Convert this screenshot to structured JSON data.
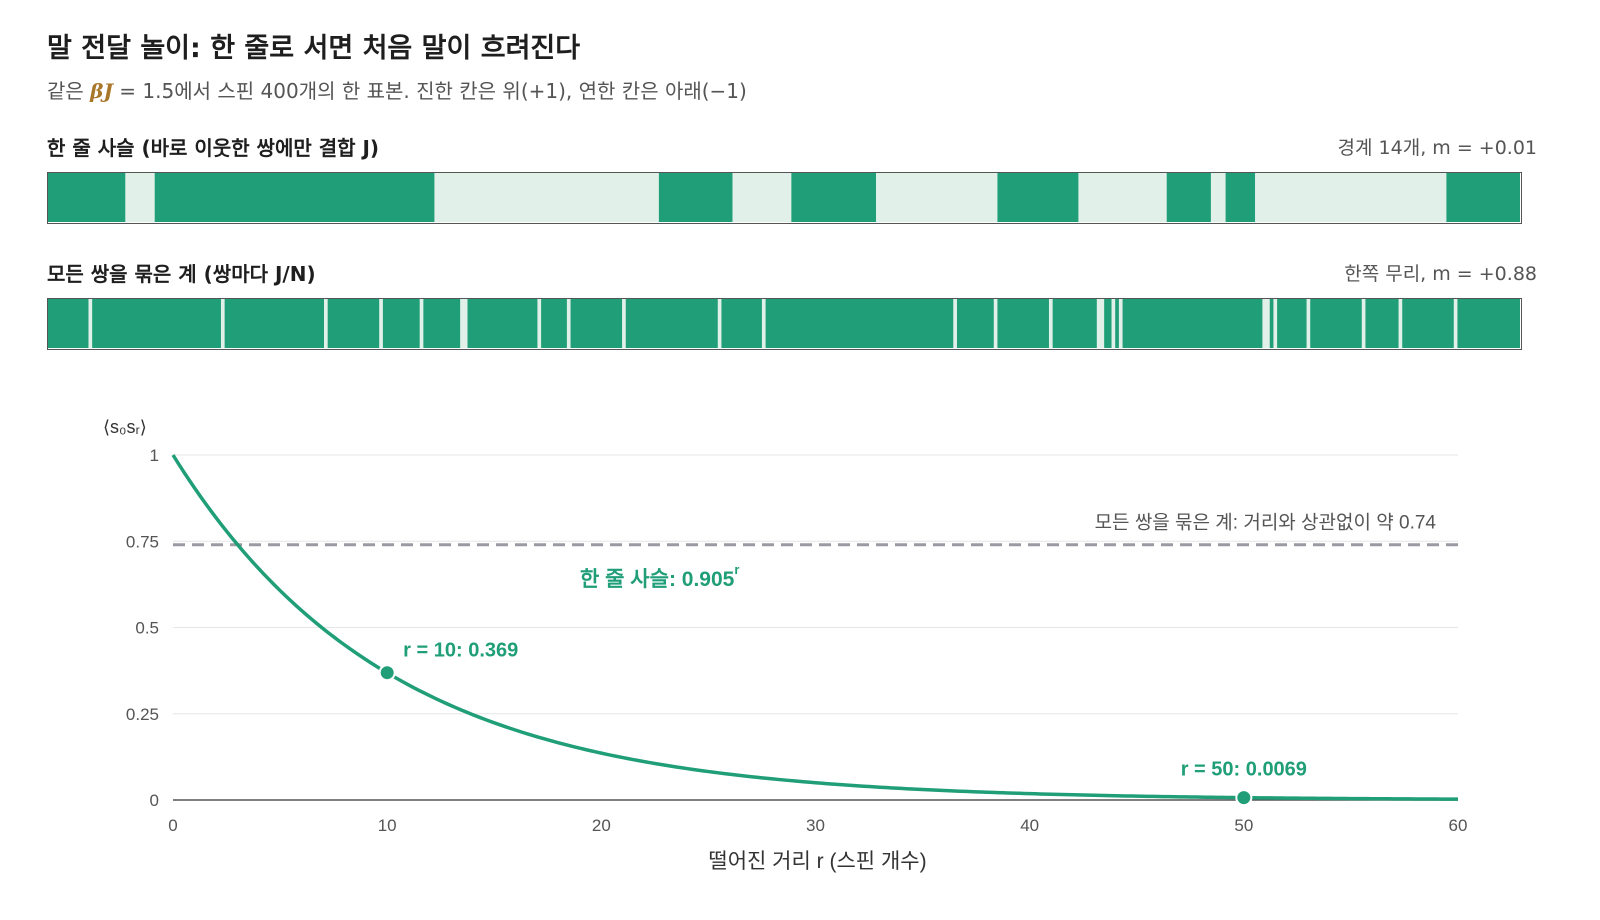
{
  "title": "말 전달 놀이: 한 줄로 서면 처음 말이 흐려진다",
  "subtitle": {
    "prefix": "같은 ",
    "beta_j": "βJ",
    "suffix": " = 1.5에서 스핀 400개의 한 표본. 진한 칸은 위(+1), 연한 칸은 아래(−1)"
  },
  "colors": {
    "up": "#1f9e77",
    "down": "#e2f0ea",
    "curve": "#1f9e77",
    "dashed": "#9a9aa3",
    "grid": "#e6e6e6",
    "axis": "#555555"
  },
  "strips": [
    {
      "label": "한 줄 사슬 (바로 이웃한 쌍에만 결합 J)",
      "stat": "경계 14개, m = +0.01",
      "n_spins": 400,
      "down_ranges": [
        [
          21,
          29
        ],
        [
          105,
          166
        ],
        [
          186,
          202
        ],
        [
          225,
          258
        ],
        [
          280,
          304
        ],
        [
          316,
          320
        ],
        [
          328,
          380
        ]
      ]
    },
    {
      "label": "모든 쌍을 묶은 계 (쌍마다 J/N)",
      "stat": "한쪽 무리, m = +0.88",
      "n_spins": 400,
      "down_ranges": [
        [
          11,
          12
        ],
        [
          47,
          48
        ],
        [
          75,
          76
        ],
        [
          90,
          91
        ],
        [
          101,
          102
        ],
        [
          112,
          114
        ],
        [
          133,
          134
        ],
        [
          141,
          142
        ],
        [
          156,
          157
        ],
        [
          182,
          183
        ],
        [
          194,
          195
        ],
        [
          246,
          247
        ],
        [
          257,
          258
        ],
        [
          272,
          273
        ],
        [
          285,
          287
        ],
        [
          289,
          290
        ],
        [
          291,
          292
        ],
        [
          330,
          332
        ],
        [
          333,
          334
        ],
        [
          342,
          343
        ],
        [
          357,
          358
        ],
        [
          367,
          368
        ],
        [
          382,
          383
        ]
      ]
    }
  ],
  "chart_data": {
    "type": "line",
    "ylabel": "⟨s₀sᵣ⟩",
    "xlabel": "떨어진 거리 r (스핀 개수)",
    "xlim": [
      0,
      60
    ],
    "ylim": [
      0,
      1
    ],
    "x_ticks": [
      0,
      10,
      20,
      30,
      40,
      50,
      60
    ],
    "y_ticks": [
      {
        "value": 0,
        "label": "0"
      },
      {
        "value": 0.25,
        "label": "0.25"
      },
      {
        "value": 0.5,
        "label": "0.5"
      },
      {
        "value": 0.75,
        "label": "0.75"
      },
      {
        "value": 1,
        "label": "1"
      }
    ],
    "grid": true,
    "series": [
      {
        "name": "한 줄 사슬: 0.905",
        "name_sup": "r",
        "style": "solid",
        "base": 0.905,
        "x_range": [
          0,
          60
        ]
      },
      {
        "name": "모든 쌍을 묶은 계: 거리와 상관없이 약 0.74",
        "style": "dashed",
        "constant": 0.74
      }
    ],
    "points": [
      {
        "x": 10,
        "y": 0.369,
        "label": "r = 10: 0.369"
      },
      {
        "x": 50,
        "y": 0.0069,
        "label": "r = 50: 0.0069"
      }
    ]
  }
}
